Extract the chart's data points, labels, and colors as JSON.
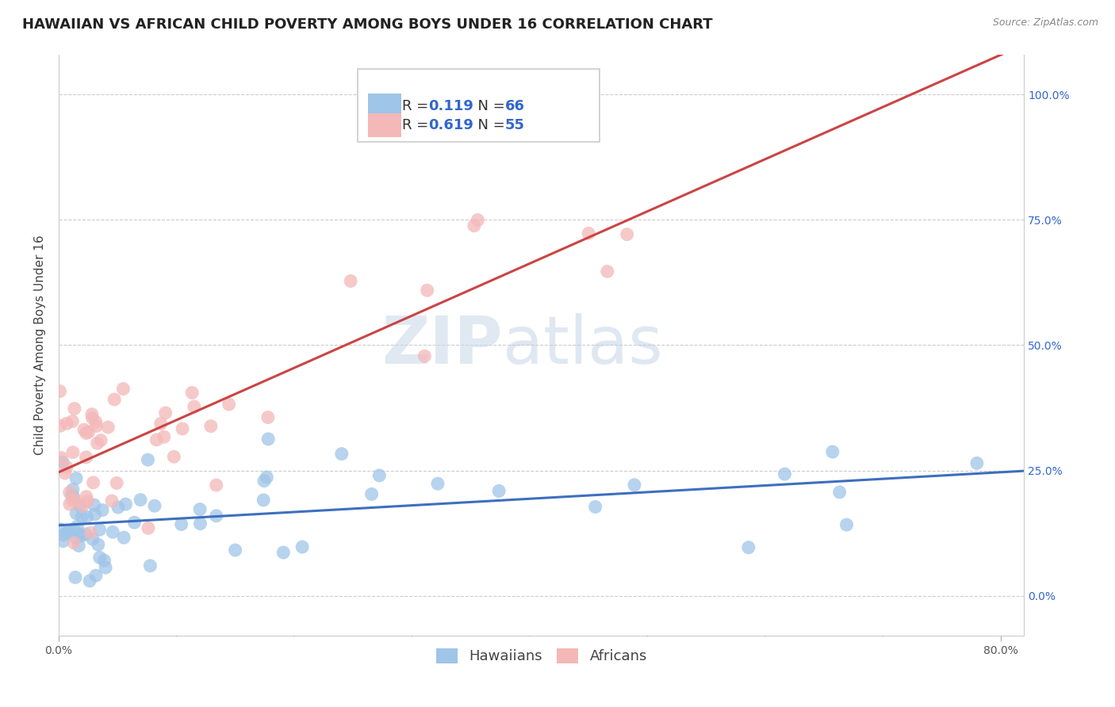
{
  "title": "HAWAIIAN VS AFRICAN CHILD POVERTY AMONG BOYS UNDER 16 CORRELATION CHART",
  "source": "Source: ZipAtlas.com",
  "ylabel": "Child Poverty Among Boys Under 16",
  "watermark_zip": "ZIP",
  "watermark_atlas": "atlas",
  "hawaiian_R": 0.119,
  "hawaiian_N": 66,
  "african_R": 0.619,
  "african_N": 55,
  "xlim": [
    0.0,
    0.82
  ],
  "ylim": [
    -0.08,
    1.08
  ],
  "yticks": [
    0.0,
    0.25,
    0.5,
    0.75,
    1.0
  ],
  "ytick_labels": [
    "0.0%",
    "25.0%",
    "50.0%",
    "75.0%",
    "100.0%"
  ],
  "hawaiian_color": "#9fc5e8",
  "african_color": "#f4b8b8",
  "hawaiian_line_color": "#3d6fbf",
  "african_line_color": "#cc4444",
  "background_color": "#ffffff",
  "grid_color": "#cccccc",
  "title_fontsize": 13,
  "axis_label_fontsize": 11,
  "tick_fontsize": 10,
  "legend_fontsize": 13,
  "r_color": "#3366cc",
  "label_color": "#555555"
}
